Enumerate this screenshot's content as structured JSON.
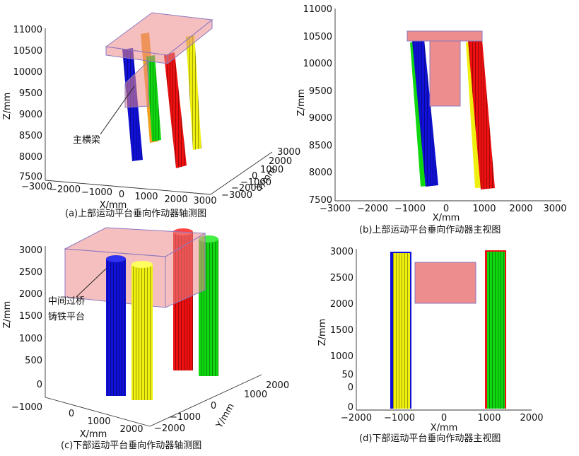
{
  "panels": {
    "a": {
      "caption": "(a)上部运动平台垂向作动器轴测图",
      "z_ticks": [
        "11000",
        "10500",
        "10000",
        "9500",
        "9000",
        "8500",
        "8000",
        "7500"
      ],
      "z_label": "Z/mm",
      "x_ticks": [
        "−3000",
        "−2000",
        "−1000",
        "0",
        "1000",
        "2000",
        "3000"
      ],
      "x_label": "X/mm",
      "y_ticks": [
        "3000",
        "2000",
        "1000",
        "0",
        "−1000",
        "−2000",
        "−3000"
      ],
      "y_label": "Y/mm",
      "annotation": "主横梁"
    },
    "b": {
      "caption": "(b)上部运动平台垂向作动器主视图",
      "z_ticks": [
        "11000",
        "10500",
        "10000",
        "9500",
        "9000",
        "8500",
        "8000",
        "7500"
      ],
      "z_label": "Z/mm",
      "x_ticks": [
        "−3000",
        "−2000",
        "−1000",
        "0",
        "1000",
        "2000",
        "3000"
      ],
      "x_label": "X/mm"
    },
    "c": {
      "caption": "(c)下部运动平台垂向作动器轴测图",
      "z_ticks": [
        "3000",
        "2500",
        "2000",
        "1500",
        "1000",
        "500",
        "0",
        "−1000"
      ],
      "z_label": "Z/mm",
      "x_ticks": [
        "0",
        "1000",
        "2000"
      ],
      "x_label": "X/mm",
      "y_ticks": [
        "2000",
        "1000",
        "0",
        "−1000",
        "−2000"
      ],
      "y_label": "Y/mm",
      "annotation_line1": "中间过桥",
      "annotation_line2": "铸铁平台"
    },
    "d": {
      "caption": "(d)下部运动平台垂向作动器主视图",
      "z_ticks": [
        "3000",
        "2500",
        "2000",
        "1500",
        "1000",
        "50",
        "0",
        "0"
      ],
      "z_label": "Z/mm",
      "x_ticks": [
        "−2000",
        "−1000",
        "0",
        "1000",
        "2000"
      ],
      "x_label": "X/mm"
    }
  },
  "colors": {
    "blue": "#1010d8",
    "red": "#ee1010",
    "green": "#10d810",
    "yellow": "#f0f010",
    "platform": "#ec8a8a"
  }
}
